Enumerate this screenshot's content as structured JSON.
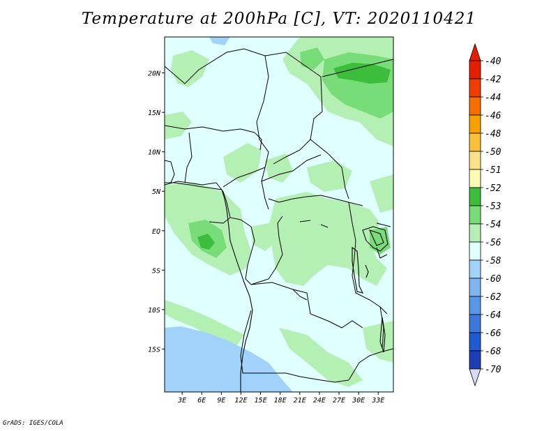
{
  "title": "Temperature at 200hPa [C], VT: 2020110421",
  "footer": "GrADS: IGES/COLA",
  "map": {
    "background_color": "#e0ffff",
    "lat_labels": [
      {
        "lat": 20,
        "text": "20N"
      },
      {
        "lat": 15,
        "text": "15N"
      },
      {
        "lat": 10,
        "text": "10N"
      },
      {
        "lat": 5,
        "text": "5N"
      },
      {
        "lat": 0,
        "text": "EQ"
      },
      {
        "lat": -5,
        "text": "5S"
      },
      {
        "lat": -10,
        "text": "10S"
      },
      {
        "lat": -15,
        "text": "15S"
      }
    ],
    "lon_labels": [
      {
        "lon": 3,
        "text": "3E"
      },
      {
        "lon": 6,
        "text": "6E"
      },
      {
        "lon": 9,
        "text": "9E"
      },
      {
        "lon": 12,
        "text": "12E"
      },
      {
        "lon": 15,
        "text": "15E"
      },
      {
        "lon": 18,
        "text": "18E"
      },
      {
        "lon": 21,
        "text": "21E"
      },
      {
        "lon": 24,
        "text": "24E"
      },
      {
        "lon": 27,
        "text": "27E"
      },
      {
        "lon": 30,
        "text": "30E"
      },
      {
        "lon": 33,
        "text": "33E"
      }
    ],
    "lon_range": [
      0,
      35
    ],
    "lat_range": [
      -20,
      25
    ]
  },
  "colorbar": {
    "levels": [
      {
        "label": "-40",
        "color": "#e61e00"
      },
      {
        "label": "-42",
        "color": "#f03c00"
      },
      {
        "label": "-44",
        "color": "#f56e00"
      },
      {
        "label": "-46",
        "color": "#f9a000"
      },
      {
        "label": "-48",
        "color": "#fbbf3a"
      },
      {
        "label": "-50",
        "color": "#fde08a"
      },
      {
        "label": "-51",
        "color": "#fefcb4"
      },
      {
        "label": "-52",
        "color": "#3cbe3c"
      },
      {
        "label": "-53",
        "color": "#78dc78"
      },
      {
        "label": "-54",
        "color": "#b4f0b4"
      },
      {
        "label": "-56",
        "color": "#e0ffff"
      },
      {
        "label": "-58",
        "color": "#a0d2fa"
      },
      {
        "label": "-60",
        "color": "#82b4f0"
      },
      {
        "label": "-62",
        "color": "#5a96e6"
      },
      {
        "label": "-64",
        "color": "#3c78dc"
      },
      {
        "label": "-66",
        "color": "#1e5ad2"
      },
      {
        "label": "-68",
        "color": "#1e3cb4"
      },
      {
        "label": "-70",
        "color": "#0a0a78"
      }
    ],
    "top_arrow_color": "#e61e00",
    "bottom_arrow_color": "#d8d8f8"
  }
}
